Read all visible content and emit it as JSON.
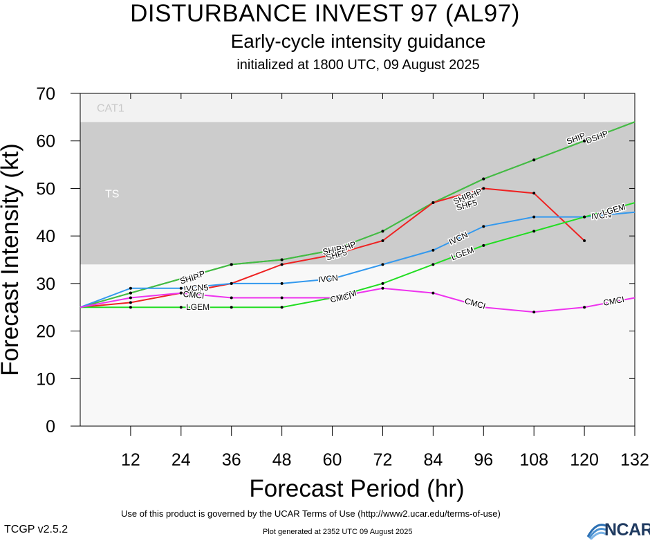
{
  "header": {
    "title": "DISTURBANCE INVEST 97 (AL97)",
    "subtitle": "Early-cycle intensity guidance",
    "init": "initialized at 1800 UTC, 09 August 2025"
  },
  "footer": {
    "terms": "Use of this product is governed by the UCAR Terms of Use (http://www2.ucar.edu/terms-of-use)",
    "version": "TCGP v2.5.2",
    "generated": "Plot generated at 2352 UTC   09 August 2025",
    "logo_text": "NCAR"
  },
  "chart_data": {
    "type": "line",
    "xlabel": "Forecast Period (hr)",
    "ylabel": "Forecast Intensity (kt)",
    "xlim": [
      0,
      132
    ],
    "ylim": [
      0,
      70
    ],
    "xticks": [
      12,
      24,
      36,
      48,
      60,
      72,
      84,
      96,
      108,
      120,
      132
    ],
    "yticks": [
      0,
      10,
      20,
      30,
      40,
      50,
      60,
      70
    ],
    "bands": [
      {
        "label": "TS",
        "from": 34,
        "to": 64,
        "color": "#cccccc"
      },
      {
        "label": "CAT1",
        "from": 64,
        "to": 70,
        "color": "#f2f2f2"
      },
      {
        "label": "",
        "from": 0,
        "to": 34,
        "color": "#f8f8f8"
      }
    ],
    "series": [
      {
        "name": "DSHP",
        "color": "#44bb44",
        "x": [
          0,
          12,
          24,
          36,
          48,
          60,
          72,
          84,
          96,
          108,
          120,
          132
        ],
        "y": [
          25,
          28,
          31,
          34,
          35,
          37,
          41,
          47,
          52,
          56,
          60,
          64
        ],
        "labels": [
          {
            "text": "DSHP",
            "x": 27,
            "y": 31.5
          },
          {
            "text": "DSHP",
            "x": 63,
            "y": 37.5
          },
          {
            "text": "DSHP",
            "x": 93,
            "y": 48.5
          },
          {
            "text": "DSHP",
            "x": 123,
            "y": 60.8
          }
        ]
      },
      {
        "name": "SHIP",
        "color": "#44bb44",
        "x": [
          0,
          12,
          24,
          36,
          48,
          60,
          72,
          84,
          96,
          108,
          120,
          132
        ],
        "y": [
          25,
          28,
          31,
          34,
          35,
          37,
          41,
          47,
          52,
          56,
          60,
          64
        ],
        "labels": [
          {
            "text": "SHIP",
            "x": 26,
            "y": 31
          },
          {
            "text": "SHIP",
            "x": 60,
            "y": 37
          },
          {
            "text": "SHIP",
            "x": 91,
            "y": 48
          },
          {
            "text": "SHIP",
            "x": 118,
            "y": 60.5
          }
        ]
      },
      {
        "name": "SHF5",
        "color": "#ee2222",
        "x": [
          0,
          12,
          24,
          36,
          48,
          60,
          72,
          84,
          96,
          108,
          120
        ],
        "y": [
          25,
          26,
          28,
          30,
          34,
          36,
          39,
          47,
          50,
          49,
          39
        ],
        "labels": [
          {
            "text": "SHF5",
            "x": 28,
            "y": 28.8
          },
          {
            "text": "SHF5",
            "x": 61,
            "y": 36
          },
          {
            "text": "SHF5",
            "x": 92,
            "y": 46.5
          }
        ]
      },
      {
        "name": "IVCN",
        "color": "#3399ee",
        "x": [
          0,
          12,
          24,
          36,
          48,
          60,
          72,
          84,
          96,
          108,
          120,
          132
        ],
        "y": [
          25,
          29,
          29,
          30,
          30,
          31,
          34,
          37,
          42,
          44,
          44,
          45
        ],
        "labels": [
          {
            "text": "IVCN",
            "x": 27,
            "y": 29
          },
          {
            "text": "IVCN",
            "x": 59,
            "y": 31
          },
          {
            "text": "IVCN",
            "x": 90,
            "y": 39.5
          },
          {
            "text": "IVCN",
            "x": 124,
            "y": 44.3
          }
        ]
      },
      {
        "name": "LGEM",
        "color": "#22dd22",
        "x": [
          0,
          12,
          24,
          36,
          48,
          60,
          72,
          84,
          96,
          108,
          120,
          132
        ],
        "y": [
          25,
          25,
          25,
          25,
          25,
          27,
          30,
          34,
          38,
          41,
          44,
          47
        ],
        "labels": [
          {
            "text": "LGEM",
            "x": 28,
            "y": 25
          },
          {
            "text": "LGEM",
            "x": 63,
            "y": 27.4
          },
          {
            "text": "LGEM",
            "x": 91,
            "y": 36.3
          },
          {
            "text": "LGEM",
            "x": 127,
            "y": 45.5
          }
        ]
      },
      {
        "name": "CMCI",
        "color": "#ee33ee",
        "x": [
          0,
          12,
          24,
          36,
          48,
          60,
          72,
          84,
          96,
          108,
          120,
          132
        ],
        "y": [
          25,
          27,
          28,
          27,
          27,
          27,
          29,
          28,
          25,
          24,
          25,
          27
        ],
        "labels": [
          {
            "text": "CMCI",
            "x": 27,
            "y": 27.6
          },
          {
            "text": "CMCI",
            "x": 62,
            "y": 27
          },
          {
            "text": "CMCI",
            "x": 94,
            "y": 25.8
          },
          {
            "text": "CMCI",
            "x": 127,
            "y": 26.3
          }
        ]
      }
    ]
  }
}
